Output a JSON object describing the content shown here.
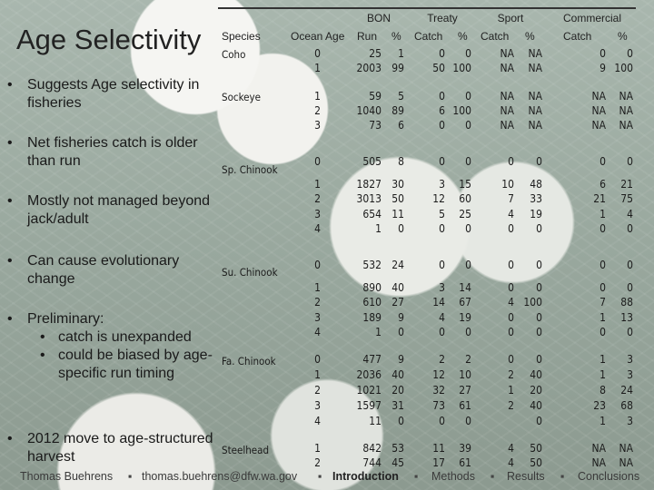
{
  "slide": {
    "title": "Age Selectivity",
    "bullets": [
      "Suggests Age selectivity in fisheries",
      "Net fisheries catch is older than run",
      "Mostly not managed beyond jack/adult",
      "Can cause evolutionary change",
      "Preliminary:",
      "2012 move to age-structured harvest"
    ],
    "sub_bullets": [
      "catch is unexpanded",
      "could be biased by age-specific run timing"
    ]
  },
  "table": {
    "group_headers": {
      "bon": "BON",
      "treaty": "Treaty",
      "sport": "Sport",
      "commercial": "Commercial"
    },
    "col_headers": {
      "species": "Species",
      "ocean_age": "Ocean Age",
      "bon_run": "Run",
      "bon_pct": "%",
      "treaty_catch": "Catch",
      "treaty_pct": "%",
      "sport_catch": "Catch",
      "sport_pct": "%",
      "comm_catch": "Catch",
      "comm_pct": "%"
    },
    "species": [
      "Coho",
      "Sockeye",
      "Sp. Chinook",
      "Su. Chinook",
      "Fa. Chinook",
      "Steelhead"
    ],
    "rows": [
      [
        "0",
        "25",
        "1",
        "0",
        "0",
        "NA",
        "NA",
        "0",
        "0"
      ],
      [
        "1",
        "2003",
        "99",
        "50",
        "100",
        "NA",
        "NA",
        "9",
        "100"
      ],
      [
        "1",
        "59",
        "5",
        "0",
        "0",
        "NA",
        "NA",
        "NA",
        "NA"
      ],
      [
        "2",
        "1040",
        "89",
        "6",
        "100",
        "NA",
        "NA",
        "NA",
        "NA"
      ],
      [
        "3",
        "73",
        "6",
        "0",
        "0",
        "NA",
        "NA",
        "NA",
        "NA"
      ],
      [
        "0",
        "505",
        "8",
        "0",
        "0",
        "0",
        "0",
        "0",
        "0"
      ],
      [
        "1",
        "1827",
        "30",
        "3",
        "15",
        "10",
        "48",
        "6",
        "21"
      ],
      [
        "2",
        "3013",
        "50",
        "12",
        "60",
        "7",
        "33",
        "21",
        "75"
      ],
      [
        "3",
        "654",
        "11",
        "5",
        "25",
        "4",
        "19",
        "1",
        "4"
      ],
      [
        "4",
        "1",
        "0",
        "0",
        "0",
        "0",
        "0",
        "0",
        "0"
      ],
      [
        "0",
        "532",
        "24",
        "0",
        "0",
        "0",
        "0",
        "0",
        "0"
      ],
      [
        "1",
        "890",
        "40",
        "3",
        "14",
        "0",
        "0",
        "0",
        "0"
      ],
      [
        "2",
        "610",
        "27",
        "14",
        "67",
        "4",
        "100",
        "7",
        "88"
      ],
      [
        "3",
        "189",
        "9",
        "4",
        "19",
        "0",
        "0",
        "1",
        "13"
      ],
      [
        "4",
        "1",
        "0",
        "0",
        "0",
        "0",
        "0",
        "0",
        "0"
      ],
      [
        "0",
        "477",
        "9",
        "2",
        "2",
        "0",
        "0",
        "1",
        "3"
      ],
      [
        "1",
        "2036",
        "40",
        "12",
        "10",
        "2",
        "40",
        "1",
        "3"
      ],
      [
        "2",
        "1021",
        "20",
        "32",
        "27",
        "1",
        "20",
        "8",
        "24"
      ],
      [
        "3",
        "1597",
        "31",
        "73",
        "61",
        "2",
        "40",
        "23",
        "68"
      ],
      [
        "4",
        "11",
        "0",
        "0",
        "0",
        "",
        "0",
        "1",
        "3"
      ],
      [
        "1",
        "842",
        "53",
        "11",
        "39",
        "4",
        "50",
        "NA",
        "NA"
      ],
      [
        "2",
        "744",
        "45",
        "17",
        "61",
        "4",
        "50",
        "NA",
        "NA"
      ]
    ]
  },
  "footer": {
    "author": "Thomas Buehrens",
    "email": "thomas.buehrens@dfw.wa.gov",
    "nav": [
      "Introduction",
      "Methods",
      "Results",
      "Conclusions"
    ],
    "bullet": "▪"
  }
}
